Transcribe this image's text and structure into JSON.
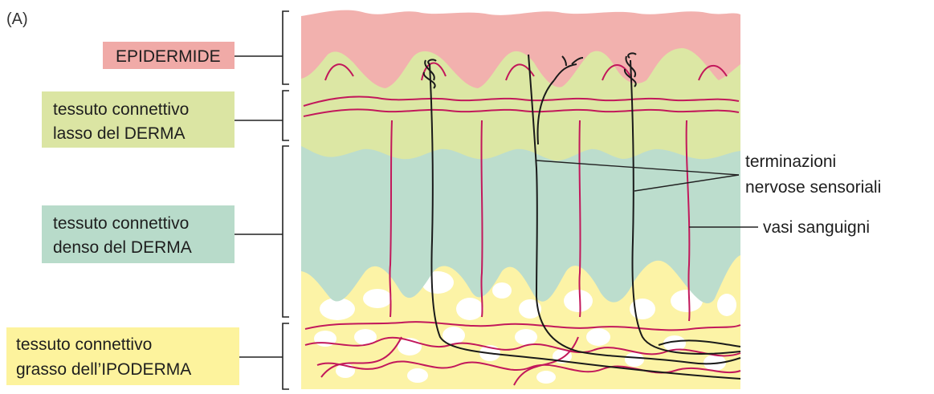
{
  "panel_label": "(A)",
  "layers": [
    {
      "lines": [
        "EPIDERMIDE"
      ],
      "color": "#f0aaa7"
    },
    {
      "lines": [
        "tessuto connettivo",
        "lasso del DERMA"
      ],
      "color": "#dbe5a3"
    },
    {
      "lines": [
        "tessuto connettivo",
        "denso del DERMA"
      ],
      "color": "#b8dbca"
    },
    {
      "lines": [
        "tessuto connettivo",
        "grasso dell’IPODERMA"
      ],
      "color": "#fdf39d"
    }
  ],
  "callouts": {
    "nerves": [
      "terminazioni",
      "nervose sensoriali"
    ],
    "vessels": "vasi sanguigni"
  },
  "colors": {
    "epidermis": "#f2b1ae",
    "loose_dermis": "#dce7a4",
    "dense_dermis": "#bcddcd",
    "hypodermis": "#fcf3a6",
    "fat_cells": "#ffffff",
    "vessel": "#c2185b",
    "nerve": "#1a1a1a"
  }
}
